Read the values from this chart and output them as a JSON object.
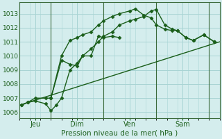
{
  "title": "",
  "xlabel": "Pression niveau de la mer( hPa )",
  "background_color": "#d4eded",
  "grid_color": "#a8d4d4",
  "line_color": "#1a5e1a",
  "vline_color": "#3a6a3a",
  "ylim": [
    1005.6,
    1013.8
  ],
  "xlim": [
    0.0,
    19.0
  ],
  "yticks": [
    1006,
    1007,
    1008,
    1009,
    1010,
    1011,
    1012,
    1013
  ],
  "xtick_positions": [
    1.5,
    5.5,
    10.5,
    15.5
  ],
  "xtick_labels": [
    "Jeu",
    "Dim",
    "Ven",
    "Sam"
  ],
  "vline_positions": [
    3.0,
    8.0,
    13.0,
    18.0
  ],
  "lines": [
    {
      "x": [
        0.0,
        19.0
      ],
      "y": [
        1006.5,
        1011.0
      ],
      "marker": null,
      "lw": 1.0,
      "ls": "-"
    },
    {
      "x": [
        0.2,
        0.8,
        1.5,
        2.5,
        3.0,
        4.0,
        4.8,
        5.5,
        6.0,
        6.8,
        7.5,
        8.0,
        8.8,
        9.5
      ],
      "y": [
        1006.5,
        1006.7,
        1007.0,
        1007.0,
        1007.0,
        1009.7,
        1009.4,
        1009.3,
        1010.0,
        1010.0,
        1011.4,
        1011.3,
        1011.4,
        1011.3
      ],
      "marker": "D",
      "ms": 2.5,
      "lw": 1.0,
      "ls": "-"
    },
    {
      "x": [
        0.2,
        0.8,
        1.5,
        2.5,
        3.0,
        3.5,
        4.0,
        4.8,
        5.5,
        6.0,
        6.8,
        7.5,
        8.0,
        8.8,
        9.5,
        10.5,
        11.0,
        11.8,
        12.5,
        13.0,
        13.8,
        14.5,
        15.0,
        15.8,
        16.5,
        17.5,
        18.5
      ],
      "y": [
        1006.5,
        1006.7,
        1006.8,
        1006.6,
        1006.1,
        1006.5,
        1007.0,
        1009.0,
        1009.5,
        1010.0,
        1010.5,
        1011.0,
        1011.4,
        1011.7,
        1012.2,
        1012.5,
        1012.6,
        1012.8,
        1013.2,
        1013.3,
        1012.2,
        1011.9,
        1011.8,
        1011.3,
        1011.1,
        1011.5,
        1011.0
      ],
      "marker": "D",
      "ms": 2.5,
      "lw": 1.0,
      "ls": "-"
    },
    {
      "x": [
        3.0,
        4.0,
        4.8,
        5.5,
        6.0,
        6.8,
        7.5,
        8.0,
        8.8,
        9.5,
        10.5,
        11.0,
        11.8,
        12.5,
        13.0,
        13.8,
        14.5,
        15.0,
        15.8,
        16.5,
        17.5,
        18.5
      ],
      "y": [
        1007.0,
        1010.0,
        1011.1,
        1011.3,
        1011.5,
        1011.7,
        1012.2,
        1012.5,
        1012.8,
        1013.0,
        1013.2,
        1013.35,
        1012.9,
        1012.7,
        1012.2,
        1011.9,
        1011.8,
        1011.8,
        1011.3,
        1011.1,
        1011.5,
        1011.0
      ],
      "marker": "D",
      "ms": 2.5,
      "lw": 1.0,
      "ls": "-"
    }
  ]
}
